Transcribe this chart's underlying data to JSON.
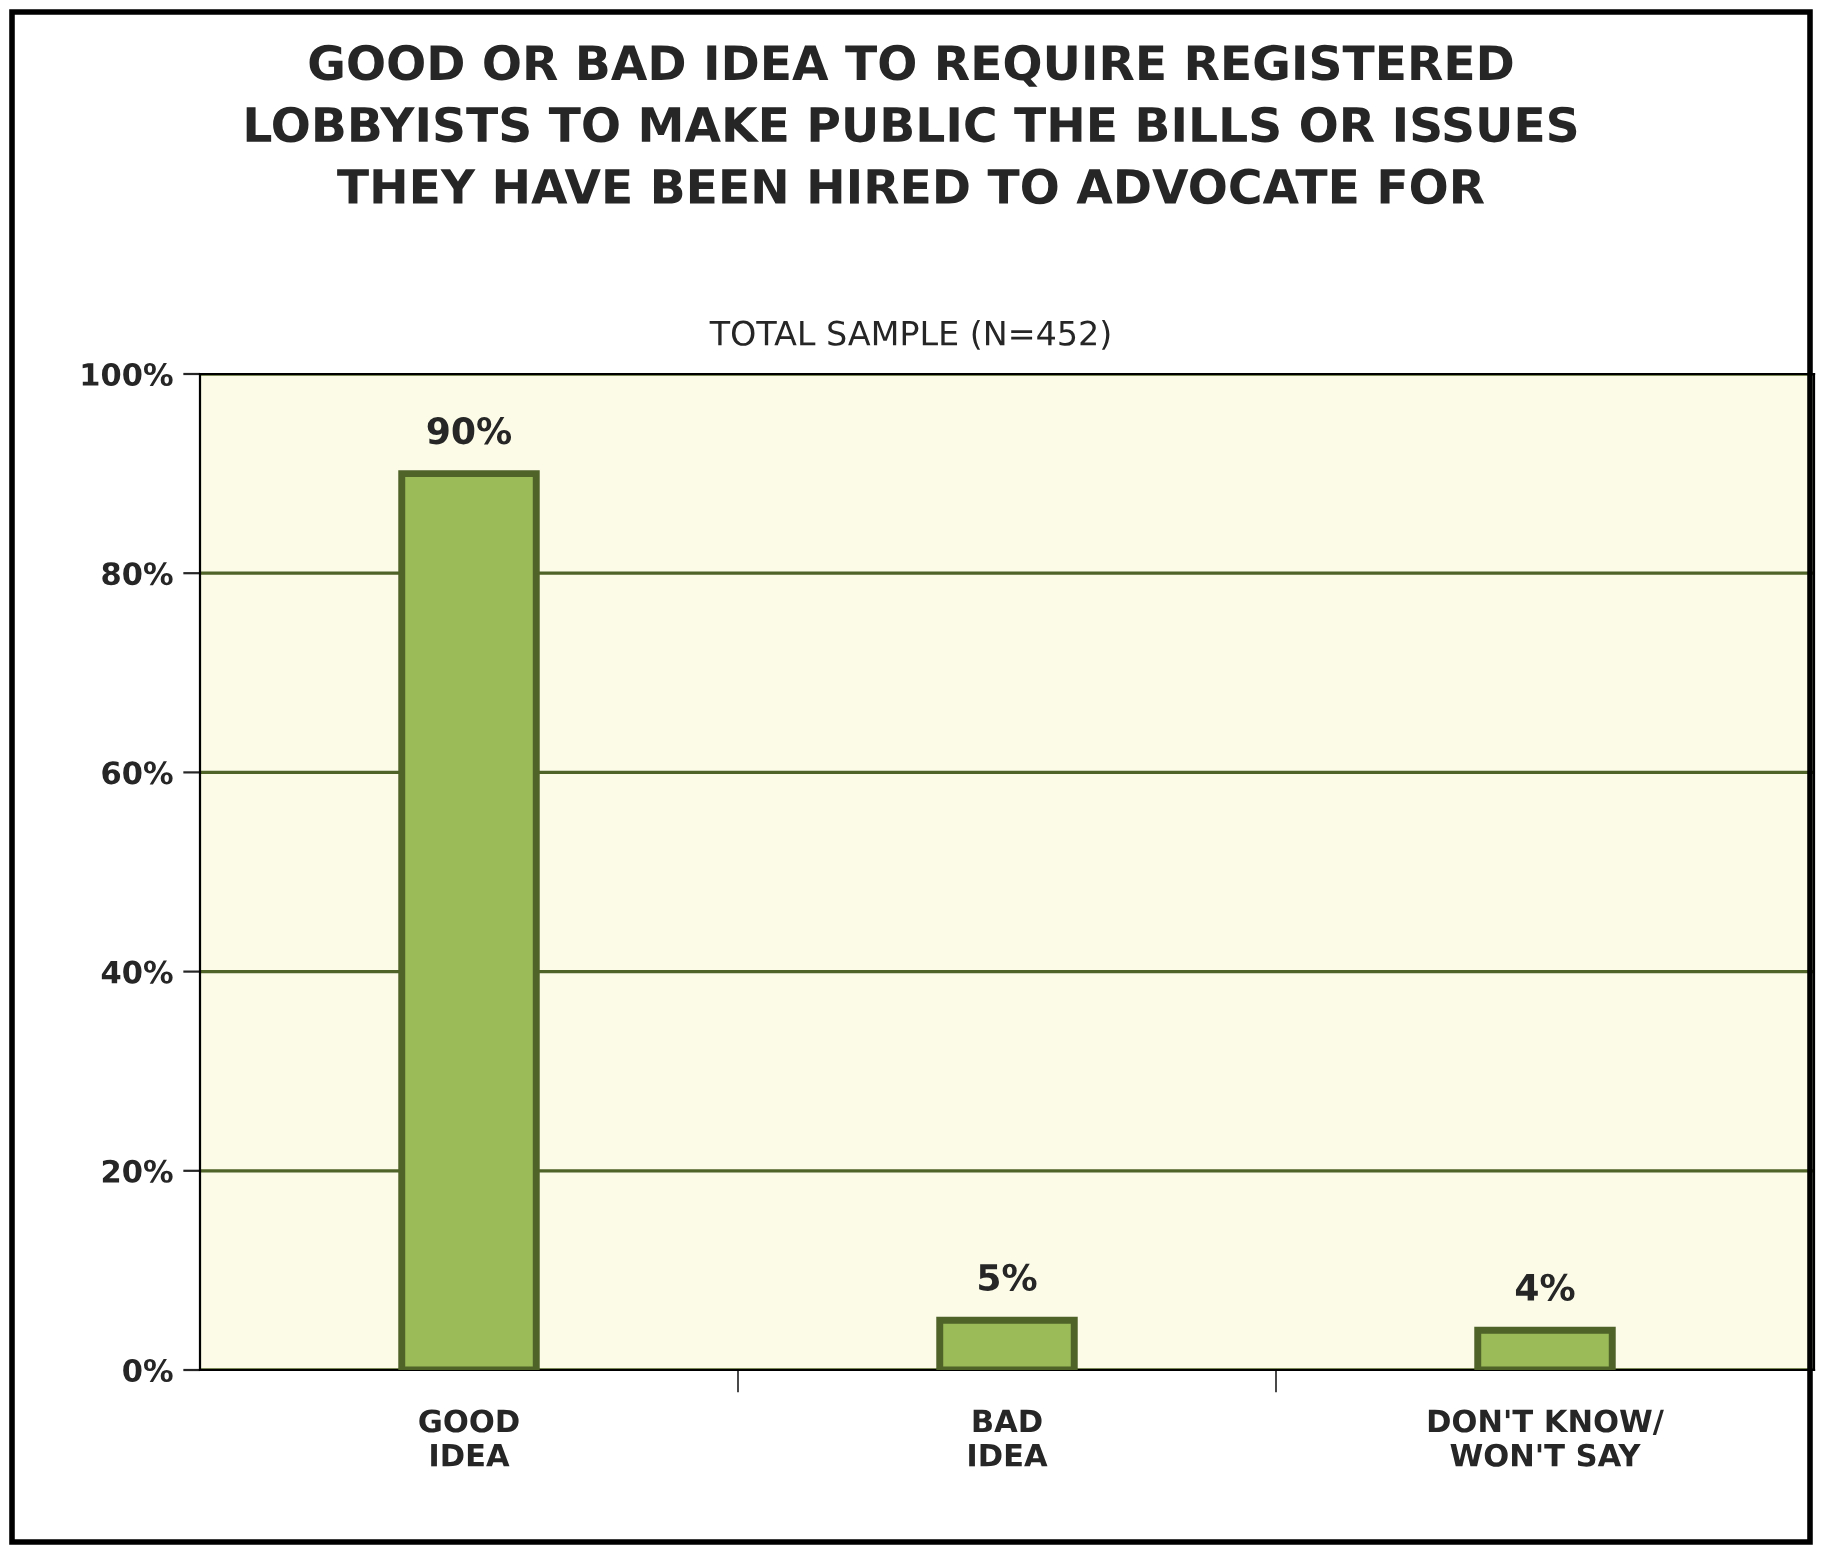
{
  "chart_data": {
    "type": "bar",
    "title": "GOOD OR BAD IDEA TO REQUIRE REGISTERED\nLOBBYISTS TO MAKE PUBLIC THE BILLS OR ISSUES\nTHEY HAVE BEEN HIRED TO ADVOCATE FOR",
    "subtitle": "TOTAL SAMPLE (N=452)",
    "categories": [
      "GOOD\nIDEA",
      "BAD\nIDEA",
      "DON'T KNOW/\nWON'T SAY"
    ],
    "values": [
      90,
      5,
      4
    ],
    "color": "#9bbb59",
    "ylim": [
      0,
      100
    ],
    "yticks": [
      {
        "value": 0,
        "label": "0%"
      },
      {
        "value": 20,
        "label": "20%"
      },
      {
        "value": 40,
        "label": "40%"
      },
      {
        "value": 60,
        "label": "60%"
      },
      {
        "value": 80,
        "label": "80%"
      },
      {
        "value": 100,
        "label": "100%"
      }
    ],
    "value_labels": [
      "90%",
      "5%",
      "4%"
    ],
    "grid": "y"
  }
}
